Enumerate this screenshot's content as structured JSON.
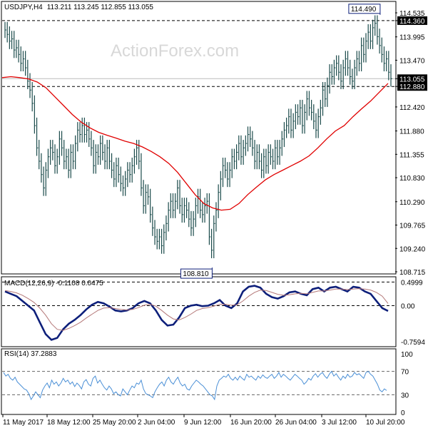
{
  "header": {
    "symbol_tf": "USDJPY,H4",
    "ohlc": "113.211 113.245 112.855 113.055"
  },
  "watermark": "ActionForex.com",
  "colors": {
    "price": "#1b4b4b",
    "ma": "#e00000",
    "macd": "#0d1f7a",
    "signal": "#b47878",
    "rsi": "#4a8fd6",
    "highlight_box": "#0d1f7a",
    "grid_dash": "#000000"
  },
  "annotations": {
    "high_label": "114.490",
    "low_label": "108.810"
  },
  "chart_data": [
    {
      "type": "ohlc",
      "title": "USDJPY,H4",
      "y_ticks": [
        "114.535",
        "114.360",
        "113.995",
        "113.470",
        "113.055",
        "112.880",
        "112.420",
        "111.880",
        "111.355",
        "110.830",
        "110.290",
        "109.765",
        "109.240",
        "108.715"
      ],
      "y_tick_values": [
        114.535,
        114.36,
        113.995,
        113.47,
        113.055,
        112.88,
        112.42,
        111.88,
        111.355,
        110.83,
        110.29,
        109.765,
        109.24,
        108.715
      ],
      "ylim": [
        108.715,
        114.535
      ],
      "reference_lines": [
        114.36,
        112.88,
        113.055
      ],
      "highlighted_ticks": [
        "114.360",
        "113.055",
        "112.880"
      ],
      "x_labels": [
        "11 May 2017",
        "18 May 12:00",
        "25 May 20:00",
        "2 Jun 04:00",
        "9 Jun 12:00",
        "16 Jun 20:00",
        "26 Jun 04:00",
        "3 Jul 12:00",
        "10 Jul 20:00"
      ],
      "series": [
        {
          "name": "price",
          "close": [
            114.15,
            114.05,
            113.9,
            113.95,
            113.7,
            113.75,
            113.6,
            113.4,
            113.5,
            113.3,
            113.0,
            112.8,
            112.5,
            112.0,
            111.5,
            111.2,
            110.9,
            110.6,
            111.0,
            111.3,
            111.5,
            111.4,
            111.1,
            111.3,
            111.7,
            111.5,
            111.2,
            111.3,
            111.0,
            111.4,
            111.2,
            111.6,
            111.9,
            111.8,
            112.0,
            111.8,
            111.9,
            111.7,
            111.5,
            111.1,
            111.4,
            111.3,
            111.6,
            111.4,
            111.2,
            111.5,
            111.2,
            111.0,
            110.8,
            111.1,
            110.9,
            110.7,
            110.6,
            110.8,
            111.0,
            110.9,
            111.1,
            111.3,
            111.5,
            111.2,
            110.6,
            110.2,
            110.5,
            110.4,
            110.0,
            109.7,
            109.5,
            109.4,
            109.5,
            109.3,
            109.6,
            109.8,
            110.1,
            110.3,
            110.1,
            110.3,
            110.6,
            110.2,
            110.0,
            110.2,
            110.1,
            109.9,
            109.7,
            109.9,
            110.2,
            110.4,
            110.1,
            110.0,
            110.2,
            110.3,
            109.5,
            109.2,
            109.8,
            110.1,
            110.5,
            110.8,
            111.1,
            111.0,
            110.8,
            111.0,
            111.3,
            111.2,
            111.4,
            111.6,
            111.3,
            111.5,
            111.6,
            111.8,
            111.7,
            111.5,
            111.2,
            111.4,
            111.2,
            111.0,
            111.3,
            111.1,
            111.4,
            111.3,
            111.2,
            111.5,
            111.3,
            111.5,
            111.7,
            111.9,
            112.0,
            112.2,
            111.9,
            112.1,
            112.3,
            112.2,
            112.4,
            112.0,
            112.3,
            112.6,
            112.4,
            112.3,
            112.1,
            111.9,
            112.2,
            112.4,
            112.8,
            112.6,
            112.9,
            113.2,
            113.1,
            113.3,
            113.4,
            113.2,
            113.0,
            113.3,
            113.5,
            113.3,
            113.1,
            113.0,
            113.3,
            113.5,
            113.4,
            113.8,
            113.6,
            113.9,
            114.1,
            113.9,
            114.2,
            114.3,
            114.0,
            113.8,
            113.6,
            113.4,
            113.5,
            113.2,
            113.055
          ]
        },
        {
          "name": "MA",
          "values": [
            113.08,
            113.1,
            113.08,
            113.05,
            112.98,
            112.85,
            112.65,
            112.45,
            112.25,
            112.08,
            111.95,
            111.85,
            111.78,
            111.72,
            111.65,
            111.6,
            111.52,
            111.42,
            111.3,
            111.15,
            110.95,
            110.7,
            110.45,
            110.25,
            110.15,
            110.1,
            110.12,
            110.25,
            110.45,
            110.62,
            110.78,
            110.9,
            111.0,
            111.1,
            111.2,
            111.32,
            111.5,
            111.7,
            111.88,
            112.0,
            112.2,
            112.38,
            112.55,
            112.75,
            112.95
          ]
        }
      ]
    },
    {
      "type": "line",
      "title": "MACD(12,26,9) -0.1108 0.0475",
      "y_ticks": [
        "0.4999",
        "0.00",
        "-0.7594"
      ],
      "y_tick_values": [
        0.4999,
        0.0,
        -0.7594
      ],
      "ylim": [
        -0.82,
        0.55
      ],
      "reference_lines": [
        0.4999,
        0.0
      ],
      "series": [
        {
          "name": "MACD",
          "values": [
            0.3,
            0.25,
            0.2,
            0.1,
            0.0,
            -0.1,
            -0.35,
            -0.6,
            -0.72,
            -0.68,
            -0.5,
            -0.38,
            -0.3,
            -0.2,
            -0.08,
            0.02,
            0.08,
            0.05,
            -0.02,
            -0.1,
            -0.12,
            -0.1,
            -0.05,
            0.05,
            0.1,
            0.05,
            -0.1,
            -0.3,
            -0.42,
            -0.4,
            -0.25,
            -0.05,
            0.0,
            0.02,
            -0.01,
            0.0,
            0.05,
            0.12,
            0.0,
            -0.05,
            0.05,
            0.3,
            0.4,
            0.42,
            0.38,
            0.25,
            0.18,
            0.15,
            0.2,
            0.28,
            0.3,
            0.25,
            0.22,
            0.35,
            0.38,
            0.3,
            0.38,
            0.4,
            0.35,
            0.3,
            0.4,
            0.38,
            0.3,
            0.25,
            0.1,
            -0.05,
            -0.1108
          ]
        },
        {
          "name": "Signal",
          "values": [
            0.32,
            0.3,
            0.27,
            0.22,
            0.15,
            0.07,
            -0.05,
            -0.2,
            -0.38,
            -0.5,
            -0.52,
            -0.48,
            -0.42,
            -0.35,
            -0.26,
            -0.18,
            -0.1,
            -0.05,
            -0.04,
            -0.06,
            -0.08,
            -0.09,
            -0.08,
            -0.04,
            0.01,
            0.03,
            -0.01,
            -0.1,
            -0.2,
            -0.28,
            -0.3,
            -0.25,
            -0.18,
            -0.1,
            -0.06,
            -0.04,
            -0.01,
            0.03,
            0.03,
            0.01,
            0.02,
            0.1,
            0.2,
            0.28,
            0.33,
            0.32,
            0.28,
            0.24,
            0.22,
            0.23,
            0.25,
            0.26,
            0.25,
            0.28,
            0.31,
            0.31,
            0.33,
            0.35,
            0.35,
            0.34,
            0.35,
            0.36,
            0.35,
            0.33,
            0.28,
            0.2,
            0.0475
          ]
        }
      ]
    },
    {
      "type": "line",
      "title": "RSI(14) 37.2883",
      "y_ticks": [
        "100",
        "70",
        "30",
        "0"
      ],
      "y_tick_values": [
        100,
        70,
        30,
        0
      ],
      "ylim": [
        0,
        100
      ],
      "reference_lines": [
        70,
        30
      ],
      "series": [
        {
          "name": "RSI",
          "values": [
            68,
            62,
            65,
            58,
            55,
            60,
            52,
            48,
            44,
            40,
            38,
            32,
            22,
            28,
            35,
            30,
            25,
            38,
            45,
            50,
            42,
            55,
            48,
            52,
            45,
            50,
            58,
            52,
            55,
            48,
            52,
            44,
            50,
            46,
            40,
            52,
            56,
            48,
            45,
            58,
            62,
            50,
            55,
            48,
            42,
            38,
            45,
            40,
            32,
            35,
            30,
            28,
            40,
            35,
            30,
            38,
            45,
            42,
            50,
            48,
            55,
            40,
            32,
            30,
            28,
            25,
            35,
            42,
            48,
            52,
            45,
            55,
            60,
            52,
            48,
            55,
            60,
            50,
            45,
            48,
            40,
            38,
            45,
            50,
            55,
            52,
            48,
            45,
            40,
            35,
            30,
            28,
            22,
            45,
            55,
            58,
            62,
            60,
            65,
            58,
            55,
            60,
            55,
            62,
            58,
            55,
            65,
            60,
            62,
            58,
            55,
            62,
            58,
            64,
            60,
            58,
            62,
            65,
            58,
            62,
            68,
            60,
            65,
            62,
            58,
            55,
            60,
            65,
            62,
            58,
            55,
            48,
            52,
            58,
            55,
            62,
            66,
            60,
            65,
            68,
            62,
            58,
            65,
            70,
            62,
            66,
            60,
            55,
            62,
            58,
            65,
            60,
            62,
            68,
            64,
            66,
            62,
            58,
            68,
            70,
            65,
            62,
            55,
            48,
            38,
            35,
            40,
            37.2883
          ]
        }
      ]
    }
  ]
}
